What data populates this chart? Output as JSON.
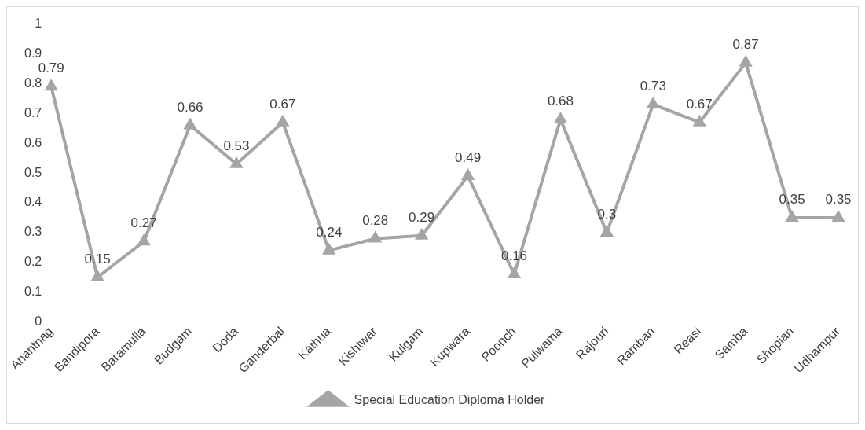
{
  "chart_data": {
    "type": "line",
    "categories": [
      "Anantnag",
      "Bandipora",
      "Baramulla",
      "Budgam",
      "Doda",
      "Ganderbal",
      "Kathua",
      "Kishtwar",
      "Kulgam",
      "Kupwara",
      "Poonch",
      "Pulwama",
      "Rajouri",
      "Ramban",
      "Reasi",
      "Samba",
      "Shopian",
      "Udhampur"
    ],
    "series": [
      {
        "name": "Special Education Diploma Holder",
        "color": "#a5a5a5",
        "values": [
          0.79,
          0.15,
          0.27,
          0.66,
          0.53,
          0.67,
          0.24,
          0.28,
          0.29,
          0.49,
          0.16,
          0.68,
          0.3,
          0.73,
          0.67,
          0.87,
          0.35,
          0.35
        ]
      }
    ],
    "ylim": [
      0,
      1
    ],
    "yticks": [
      0,
      0.1,
      0.2,
      0.3,
      0.4,
      0.5,
      0.6,
      0.7,
      0.8,
      0.9,
      1
    ],
    "grid": false,
    "legend": "bottom",
    "marker": "triangle",
    "line_style": "solid",
    "data_labels": true
  }
}
